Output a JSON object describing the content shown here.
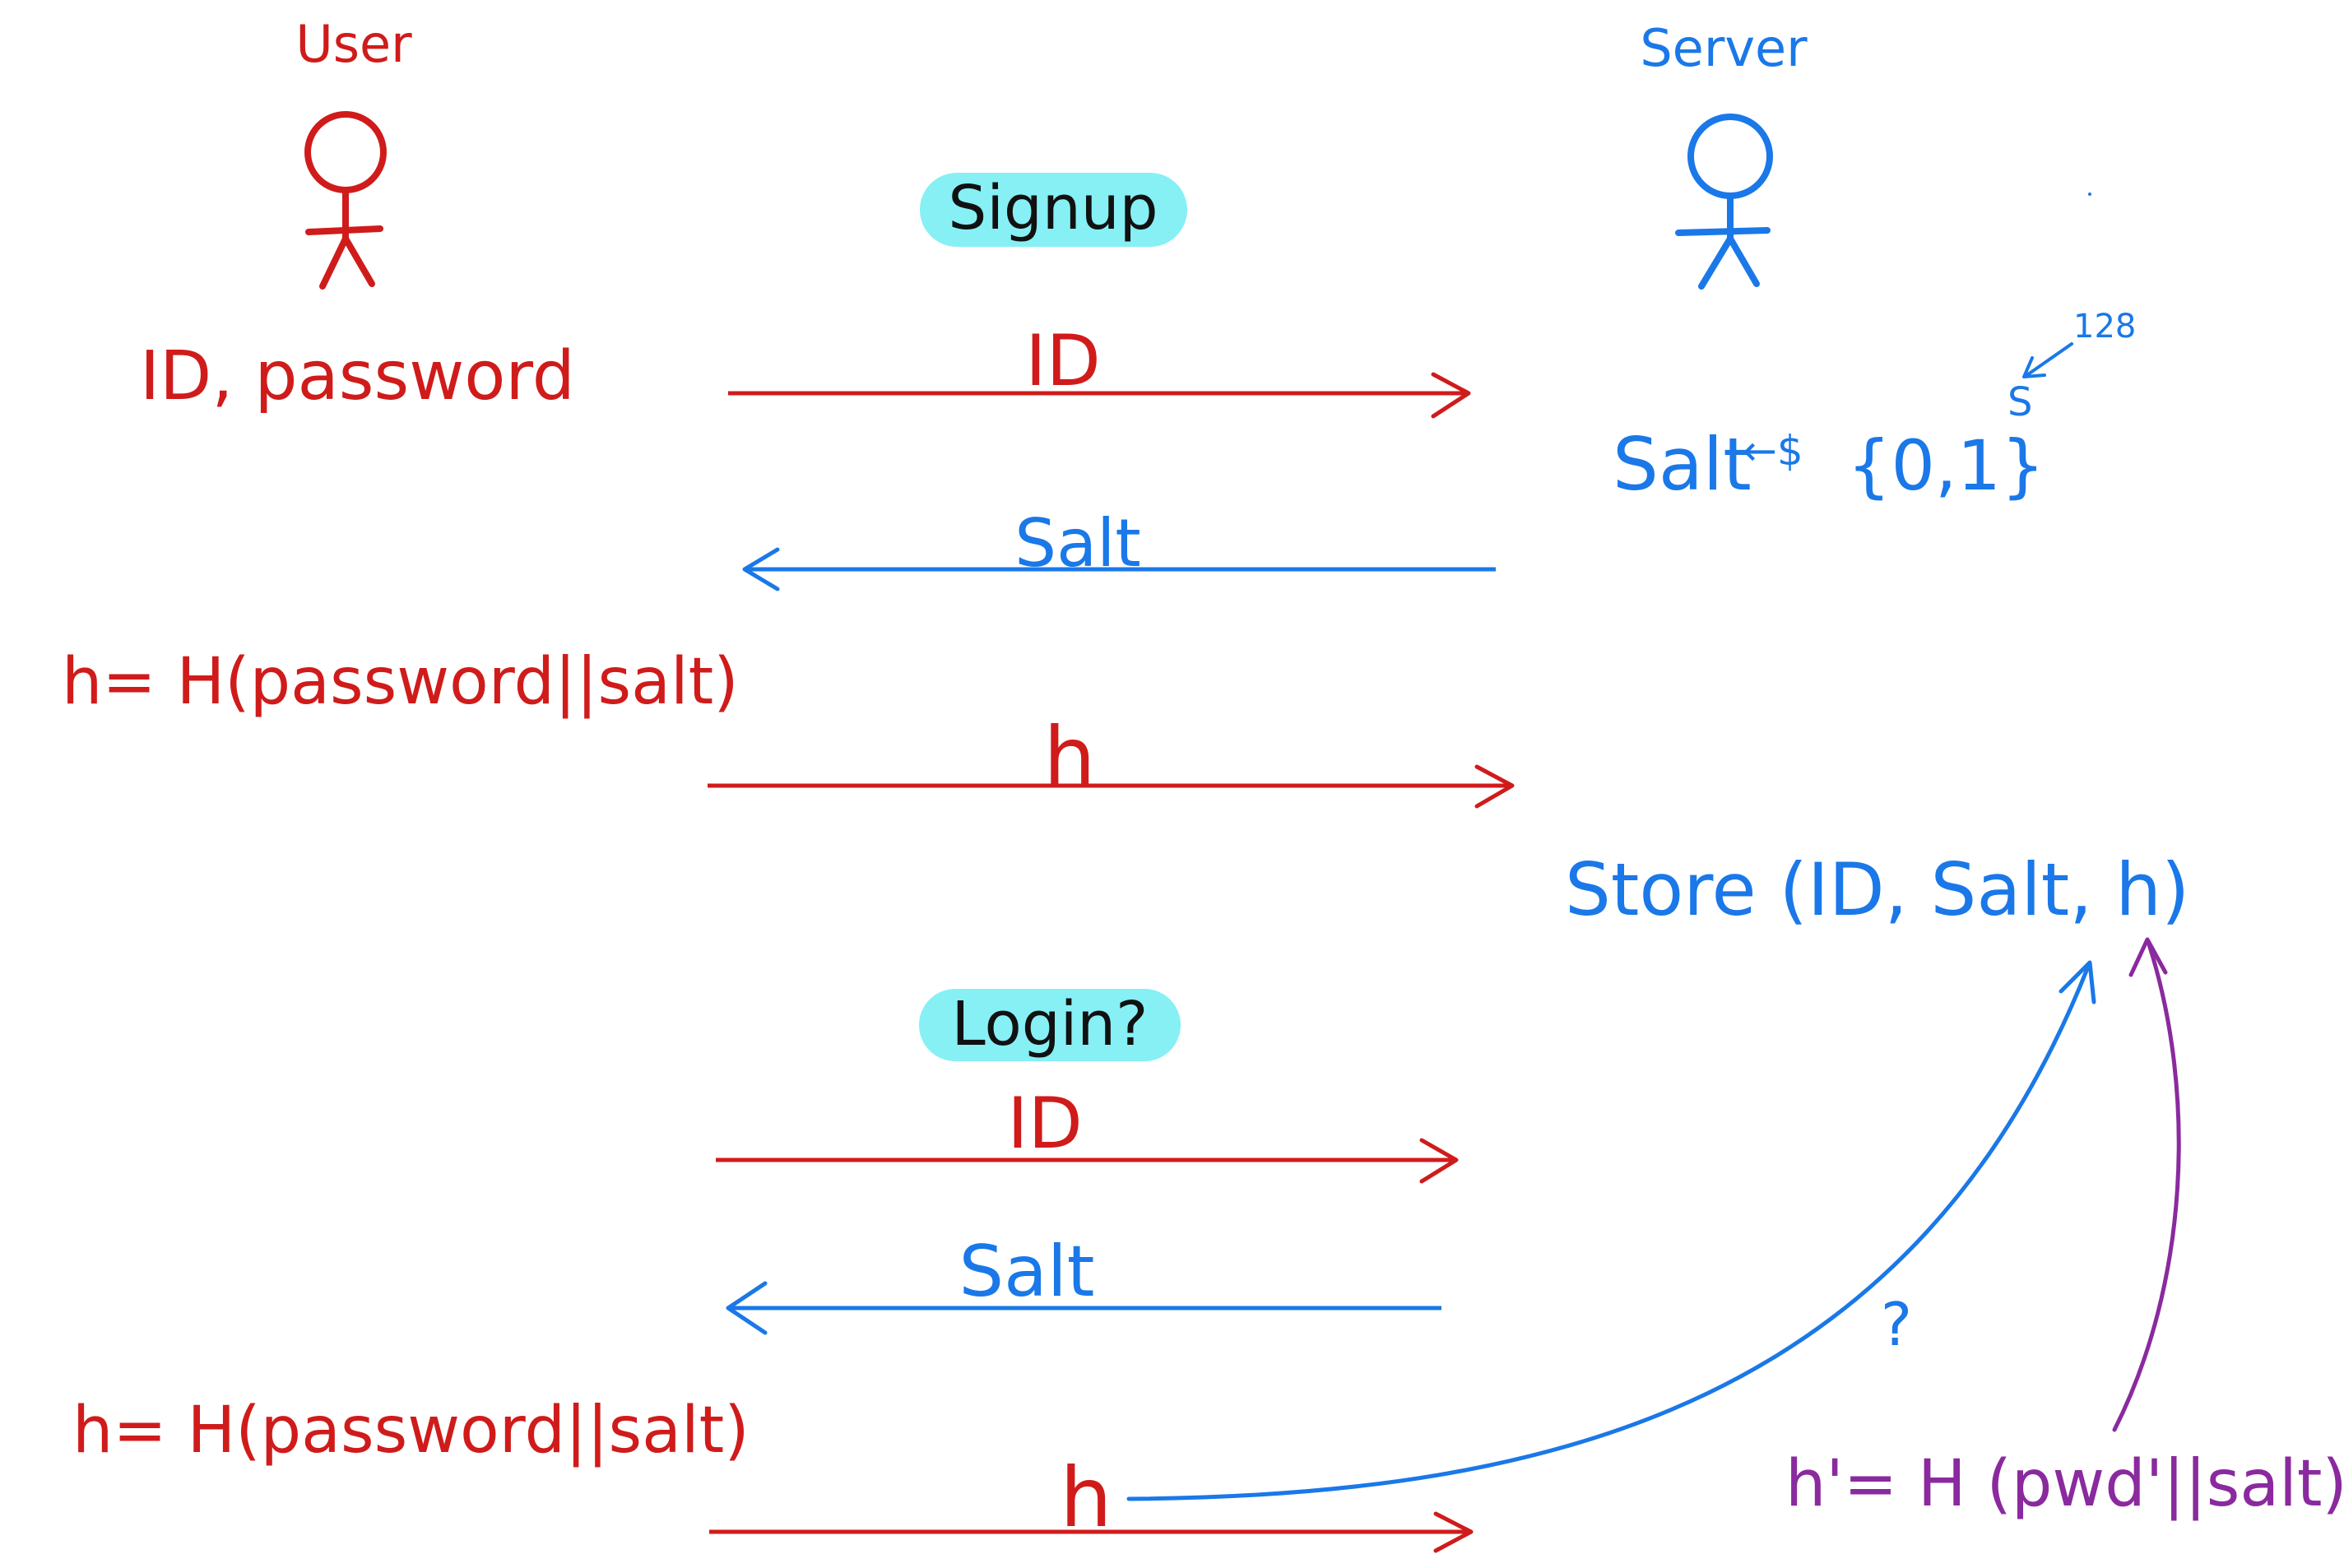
{
  "colors": {
    "user": "#d01b1b",
    "server": "#1a78e8",
    "verify": "#8a2a9e",
    "highlight": "#86f0f5",
    "ink": "#111111"
  },
  "actors": {
    "user_label": "User",
    "server_label": "Server"
  },
  "user_side": {
    "credentials": "ID, password",
    "signup_hash": "h= H(password||salt)",
    "login_hash": "h= H(password||salt)"
  },
  "server_side": {
    "salt_gen": "Salt",
    "salt_gen_arrow": "←$",
    "salt_gen_set": "{0,1}",
    "salt_gen_exp": "S",
    "salt_gen_exp_value": "128",
    "store": "Store (ID, Salt, h)",
    "verify_hash": "h'= H (pwd'||salt)",
    "question": "?"
  },
  "phases": {
    "signup": "Signup",
    "login": "Login?"
  },
  "messages": {
    "signup": [
      {
        "label": "ID",
        "direction": "to-server"
      },
      {
        "label": "Salt",
        "direction": "to-user"
      },
      {
        "label": "h",
        "direction": "to-server"
      }
    ],
    "login": [
      {
        "label": "ID",
        "direction": "to-server"
      },
      {
        "label": "Salt",
        "direction": "to-user"
      },
      {
        "label": "h",
        "direction": "to-server"
      }
    ]
  }
}
